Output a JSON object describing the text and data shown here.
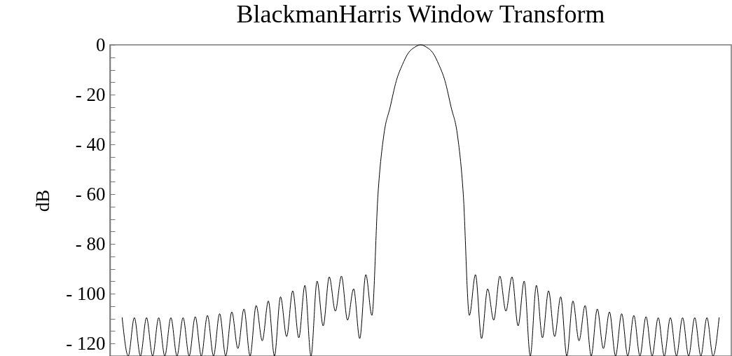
{
  "chart_data": {
    "type": "line",
    "title": "BlackmanHarris Window Transform",
    "ylabel": "dB",
    "color": "#000000",
    "tick_labels": "y",
    "ylim": [
      -125,
      0
    ],
    "yticks": [
      {
        "value": 0,
        "label": "0"
      },
      {
        "value": -5,
        "label": null
      },
      {
        "value": -10,
        "label": null
      },
      {
        "value": -15,
        "label": null
      },
      {
        "value": -20,
        "label": "- 20"
      },
      {
        "value": -25,
        "label": null
      },
      {
        "value": -30,
        "label": null
      },
      {
        "value": -35,
        "label": null
      },
      {
        "value": -40,
        "label": "- 40"
      },
      {
        "value": -45,
        "label": null
      },
      {
        "value": -50,
        "label": null
      },
      {
        "value": -55,
        "label": null
      },
      {
        "value": -60,
        "label": "- 60"
      },
      {
        "value": -65,
        "label": null
      },
      {
        "value": -70,
        "label": null
      },
      {
        "value": -75,
        "label": null
      },
      {
        "value": -80,
        "label": "- 80"
      },
      {
        "value": -85,
        "label": null
      },
      {
        "value": -90,
        "label": null
      },
      {
        "value": -95,
        "label": null
      },
      {
        "value": -100,
        "label": "- 100"
      },
      {
        "value": -105,
        "label": null
      },
      {
        "value": -110,
        "label": null
      },
      {
        "value": -115,
        "label": null
      },
      {
        "value": -120,
        "label": "- 120"
      },
      {
        "value": -125,
        "label": null
      }
    ],
    "categories": [
      null,
      null,
      null,
      null,
      null,
      null,
      null,
      null,
      null,
      null,
      null,
      null,
      null,
      null,
      null,
      null,
      null,
      null,
      null,
      null,
      null,
      null,
      null,
      null,
      null,
      null,
      null,
      null,
      null,
      null,
      null,
      null,
      null,
      null,
      null,
      null,
      null,
      null,
      null,
      null,
      null,
      null,
      null,
      null,
      null,
      null,
      null,
      null,
      null,
      null,
      null,
      null,
      null,
      null,
      null,
      null,
      null,
      null,
      null,
      null,
      null,
      null,
      null,
      null,
      null,
      null,
      null,
      null,
      null,
      null,
      null,
      null,
      null,
      null,
      null,
      null,
      null,
      null,
      null,
      null,
      null,
      null,
      null,
      null,
      null,
      null,
      null,
      null,
      null,
      null,
      null,
      null,
      null,
      null,
      null,
      null,
      null,
      null,
      null,
      null,
      null,
      null,
      null
    ],
    "values": [
      null,
      null,
      -109.6,
      -125,
      -109.6,
      -125,
      -109.6,
      -125,
      -109.6,
      -125,
      -109.6,
      -125,
      -109.6,
      -125,
      -109.2,
      -125,
      -108.7,
      -125,
      -108,
      -125,
      -107.3,
      -122,
      -106.1,
      -125,
      -104.7,
      -118.9,
      -102.9,
      -125,
      -101.2,
      -117.2,
      -98.8,
      -117.7,
      -96.6,
      -125,
      -94.9,
      -112.9,
      -93.2,
      -107,
      -92.9,
      -110.6,
      -98,
      -118,
      -92.3,
      -108.7,
      -60,
      -35.5,
      -25,
      -14.5,
      -8,
      -3.2,
      -1,
      0,
      -1,
      -3.2,
      -8,
      -14.5,
      -25,
      -35.5,
      -60,
      -108.7,
      -92.3,
      -118,
      -98,
      -110.6,
      -92.9,
      -107,
      -93.2,
      -112.9,
      -94.9,
      -125,
      -96.6,
      -117.7,
      -98.8,
      -117.2,
      -101.2,
      -125,
      -102.9,
      -118.9,
      -104.7,
      -125,
      -106.1,
      -122,
      -107.3,
      -125,
      -108,
      -125,
      -108.7,
      -125,
      -109.2,
      -125,
      -109.6,
      -125,
      -109.6,
      -125,
      -109.6,
      -125,
      -109.6,
      -125,
      -109.6,
      -125,
      -109.6,
      null,
      null
    ]
  }
}
